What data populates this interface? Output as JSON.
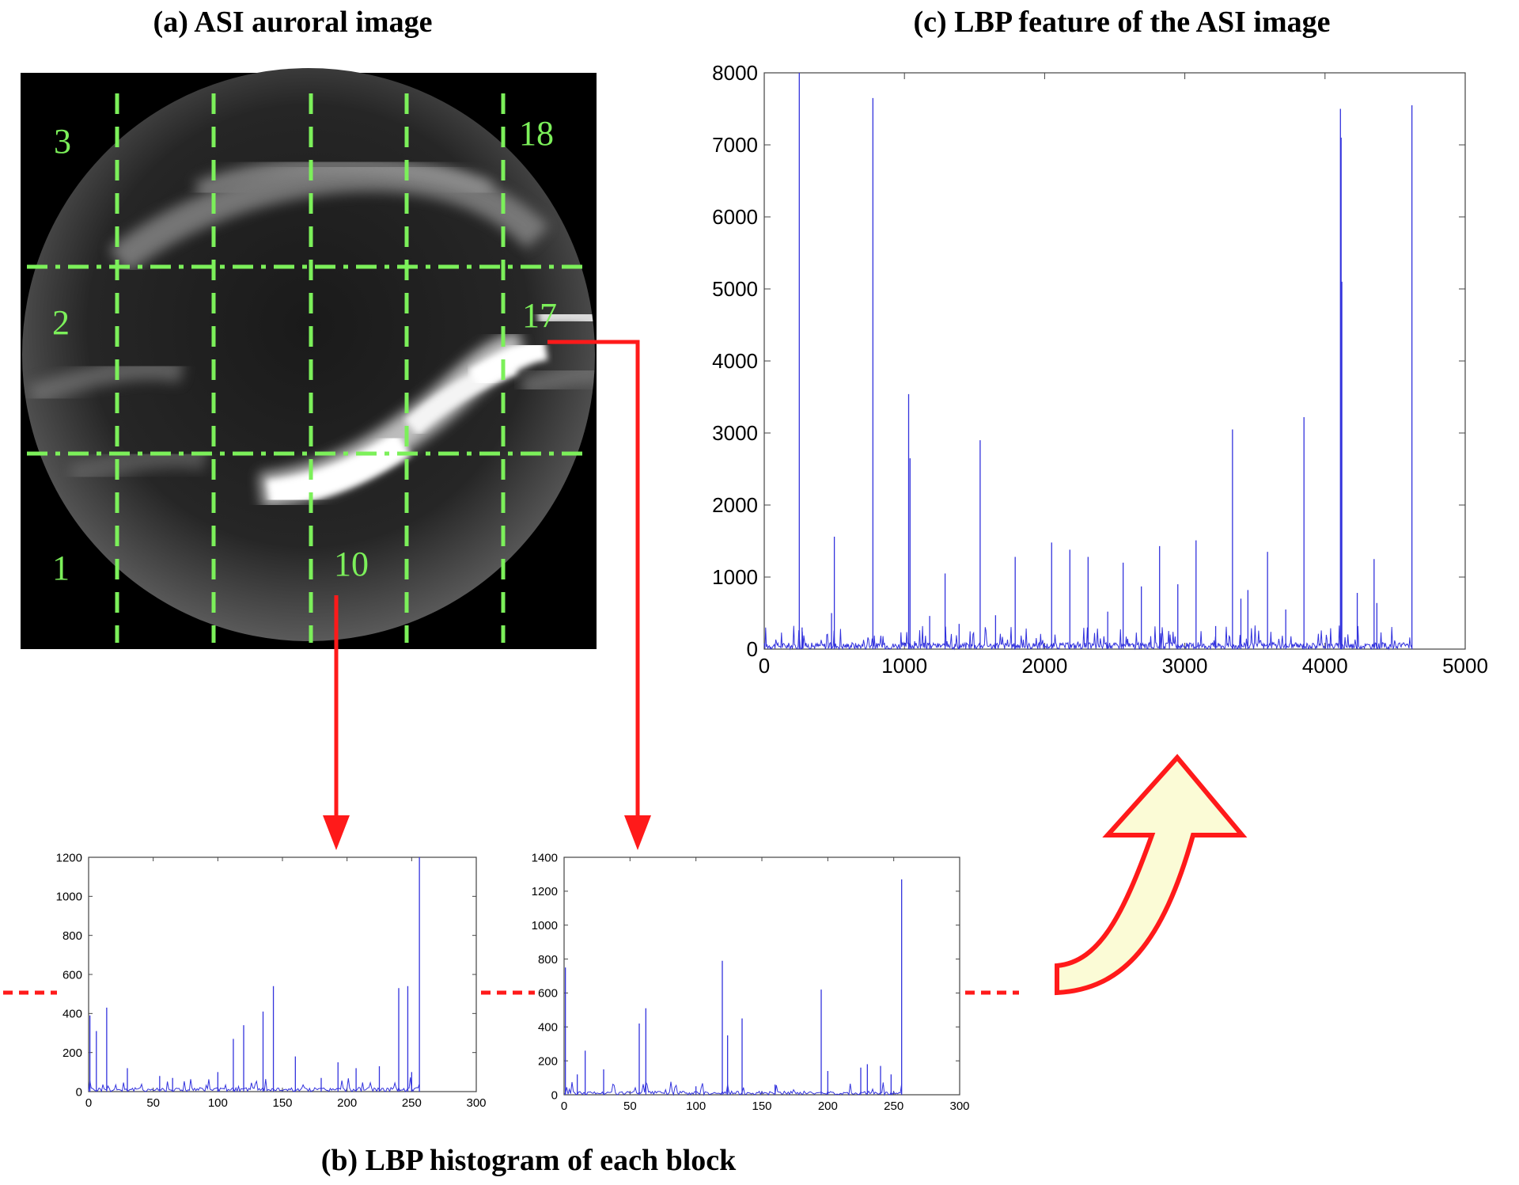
{
  "titles": {
    "a": "(a) ASI auroral image",
    "b": "(b) LBP histogram of each block",
    "c": "(c) LBP feature of the ASI image"
  },
  "colors": {
    "grid": "#7cf05a",
    "arrow": "#ff1a1a",
    "series": "#3333dd",
    "bigArrowFill": "#fbfbd6"
  },
  "image_a": {
    "block_labels": [
      "3",
      "18",
      "2",
      "17",
      "1",
      "10"
    ]
  },
  "chart_data": [
    {
      "type": "line",
      "id": "c",
      "title": "(c) LBP feature of the ASI image",
      "xlim": [
        0,
        5000
      ],
      "ylim": [
        0,
        8000
      ],
      "xticks": [
        0,
        1000,
        2000,
        3000,
        4000,
        5000
      ],
      "yticks": [
        0,
        1000,
        2000,
        3000,
        4000,
        5000,
        6000,
        7000,
        8000
      ],
      "spikes": [
        [
          250,
          8000
        ],
        [
          270,
          300
        ],
        [
          500,
          1560
        ],
        [
          480,
          500
        ],
        [
          775,
          7650
        ],
        [
          1030,
          3540
        ],
        [
          1040,
          2650
        ],
        [
          1290,
          1050
        ],
        [
          1180,
          460
        ],
        [
          1390,
          350
        ],
        [
          1540,
          2900
        ],
        [
          1650,
          470
        ],
        [
          1790,
          1280
        ],
        [
          2050,
          1480
        ],
        [
          2180,
          1380
        ],
        [
          2310,
          1280
        ],
        [
          2450,
          520
        ],
        [
          2560,
          1200
        ],
        [
          2690,
          870
        ],
        [
          2820,
          1430
        ],
        [
          2950,
          900
        ],
        [
          3080,
          1510
        ],
        [
          3220,
          320
        ],
        [
          3340,
          3050
        ],
        [
          3400,
          700
        ],
        [
          3450,
          820
        ],
        [
          3590,
          1350
        ],
        [
          3720,
          550
        ],
        [
          3850,
          3220
        ],
        [
          4110,
          7500
        ],
        [
          4115,
          7100
        ],
        [
          4120,
          5100
        ],
        [
          4230,
          780
        ],
        [
          4350,
          1250
        ],
        [
          4370,
          640
        ],
        [
          4620,
          7550
        ]
      ],
      "noise_level": 150
    },
    {
      "type": "line",
      "id": "b1",
      "xlim": [
        0,
        300
      ],
      "ylim": [
        0,
        1200
      ],
      "xticks": [
        0,
        50,
        100,
        150,
        200,
        250,
        300
      ],
      "yticks": [
        0,
        200,
        400,
        600,
        800,
        1000,
        1200
      ],
      "spikes": [
        [
          1,
          390
        ],
        [
          6,
          310
        ],
        [
          14,
          430
        ],
        [
          30,
          120
        ],
        [
          55,
          80
        ],
        [
          65,
          70
        ],
        [
          100,
          100
        ],
        [
          112,
          270
        ],
        [
          120,
          340
        ],
        [
          135,
          410
        ],
        [
          143,
          540
        ],
        [
          160,
          180
        ],
        [
          180,
          70
        ],
        [
          193,
          150
        ],
        [
          207,
          120
        ],
        [
          225,
          130
        ],
        [
          240,
          530
        ],
        [
          247,
          540
        ],
        [
          250,
          100
        ],
        [
          256,
          1200
        ]
      ],
      "noise_level": 35
    },
    {
      "type": "line",
      "id": "b2",
      "xlim": [
        0,
        300
      ],
      "ylim": [
        0,
        1400
      ],
      "xticks": [
        0,
        50,
        100,
        150,
        200,
        250,
        300
      ],
      "yticks": [
        0,
        200,
        400,
        600,
        800,
        1000,
        1200,
        1400
      ],
      "spikes": [
        [
          1,
          750
        ],
        [
          10,
          120
        ],
        [
          16,
          260
        ],
        [
          30,
          150
        ],
        [
          57,
          420
        ],
        [
          62,
          510
        ],
        [
          100,
          50
        ],
        [
          120,
          790
        ],
        [
          124,
          350
        ],
        [
          135,
          450
        ],
        [
          160,
          60
        ],
        [
          195,
          620
        ],
        [
          200,
          140
        ],
        [
          225,
          160
        ],
        [
          230,
          180
        ],
        [
          240,
          170
        ],
        [
          248,
          120
        ],
        [
          256,
          1270
        ]
      ],
      "noise_level": 35
    }
  ]
}
